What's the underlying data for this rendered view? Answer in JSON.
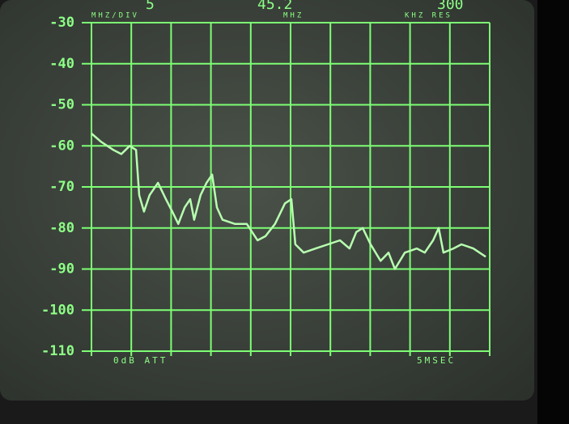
{
  "chart_data": {
    "type": "line",
    "span_value": "5",
    "span_unit": "MHZ/DIV",
    "center_value": "45.2",
    "center_unit": "MHZ",
    "res_value": "300",
    "res_unit": "KHZ RES",
    "attenuation": "0dB ATT",
    "sweep": "5MSEC",
    "x": [
      0,
      0.24,
      0.55,
      0.75,
      0.96,
      1.12,
      1.2,
      1.32,
      1.46,
      1.67,
      1.87,
      2.03,
      2.18,
      2.34,
      2.48,
      2.58,
      2.74,
      2.89,
      3.03,
      3.15,
      3.29,
      3.6,
      3.9,
      4.17,
      4.37,
      4.61,
      4.86,
      5.02,
      5.12,
      5.33,
      5.63,
      5.94,
      6.24,
      6.48,
      6.65,
      6.81,
      7.01,
      7.26,
      7.46,
      7.62,
      7.87,
      8.17,
      8.37,
      8.58,
      8.72,
      8.84,
      9.09,
      9.29,
      9.59,
      9.9
    ],
    "values": [
      -57,
      -59,
      -61,
      -62,
      -60,
      -61,
      -72,
      -76,
      -72,
      -69,
      -73,
      -76,
      -79,
      -75,
      -73,
      -78,
      -72,
      -69,
      -67,
      -75,
      -78,
      -79,
      -79,
      -83,
      -82,
      -79,
      -74,
      -73,
      -84,
      -86,
      -85,
      -84,
      -83,
      -85,
      -81,
      -80,
      -84,
      -88,
      -86,
      -90,
      -86,
      -85,
      -86,
      -83,
      -80,
      -86,
      -85,
      -84,
      -85,
      -87
    ],
    "color": "#b8ffb0",
    "xlim": [
      0,
      10
    ],
    "xticks": [
      0,
      1,
      2,
      3,
      4,
      5,
      6,
      7,
      8,
      9,
      10
    ],
    "ylim": [
      -110,
      -30
    ],
    "yticks": [
      -30,
      -40,
      -50,
      -60,
      -70,
      -80,
      -90,
      -100,
      -110
    ],
    "grid": true
  }
}
